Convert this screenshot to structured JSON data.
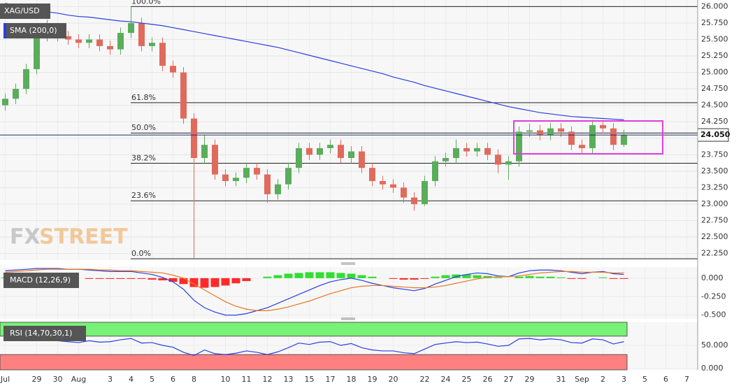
{
  "chart_data": [
    {
      "type": "candlestick",
      "title": "XAG/USD",
      "categories": [
        "Jul",
        null,
        null,
        "29",
        null,
        "30",
        null,
        "Aug",
        null,
        null,
        "3",
        null,
        "4",
        null,
        "5",
        null,
        "6",
        null,
        "8",
        null,
        null,
        "10",
        null,
        "11",
        null,
        "12",
        null,
        "13",
        null,
        "15",
        null,
        "17",
        null,
        "18",
        null,
        "19",
        null,
        "20",
        null,
        null,
        "22",
        null,
        "24",
        null,
        "25",
        null,
        "26",
        null,
        "27",
        null,
        "29",
        null,
        null,
        "31",
        null,
        "Sep",
        null,
        "2",
        null,
        "3",
        null,
        "5",
        null,
        "6",
        null,
        "7"
      ],
      "open": [
        24.5,
        24.6,
        24.75,
        25.05,
        25.55,
        25.65,
        25.55,
        25.5,
        25.45,
        25.5,
        25.4,
        25.35,
        25.6,
        25.75,
        25.4,
        25.45,
        25.1,
        25.0,
        24.3,
        23.7,
        23.9,
        23.45,
        23.35,
        23.4,
        23.55,
        23.45,
        23.15,
        23.3,
        23.55,
        23.85,
        23.75,
        23.85,
        23.9,
        23.7,
        23.8,
        23.55,
        23.35,
        23.3,
        23.25,
        23.1,
        23.0,
        23.35,
        23.65,
        23.7,
        23.85,
        23.8,
        23.85,
        23.75,
        23.6,
        23.65,
        24.1,
        24.12,
        24.05,
        24.15,
        24.1,
        23.9,
        23.85,
        24.2,
        24.15,
        23.9,
        null,
        null,
        null,
        null,
        null,
        null
      ],
      "high": [
        24.68,
        24.83,
        25.13,
        25.63,
        25.8,
        25.73,
        25.63,
        25.58,
        25.58,
        25.58,
        25.48,
        25.68,
        26.0,
        25.83,
        25.53,
        25.53,
        25.18,
        25.08,
        24.38,
        24.05,
        23.98,
        23.53,
        23.48,
        23.63,
        23.63,
        23.53,
        23.38,
        23.63,
        23.93,
        23.93,
        23.93,
        23.98,
        23.98,
        23.88,
        23.88,
        23.63,
        23.43,
        23.38,
        23.33,
        23.18,
        23.43,
        23.73,
        23.78,
        23.98,
        23.93,
        23.93,
        23.93,
        23.83,
        23.73,
        24.18,
        24.22,
        24.2,
        24.23,
        24.23,
        24.18,
        23.98,
        24.28,
        24.25,
        24.23,
        24.13,
        null,
        null,
        null,
        null,
        null,
        null
      ],
      "low": [
        24.42,
        24.52,
        24.67,
        24.97,
        25.47,
        25.47,
        25.42,
        25.37,
        25.37,
        25.32,
        25.27,
        25.27,
        25.52,
        25.32,
        25.32,
        25.02,
        24.92,
        24.22,
        22.17,
        23.62,
        23.37,
        23.27,
        23.27,
        23.32,
        23.37,
        23.02,
        23.07,
        23.22,
        23.47,
        23.67,
        23.67,
        23.77,
        23.62,
        23.62,
        23.47,
        23.27,
        23.22,
        23.17,
        23.02,
        22.9,
        22.97,
        23.27,
        23.57,
        23.62,
        23.72,
        23.72,
        23.67,
        23.47,
        23.37,
        23.57,
        24.02,
        23.97,
        23.97,
        24.02,
        23.82,
        23.77,
        23.77,
        24.07,
        23.82,
        23.87,
        null,
        null,
        null,
        null,
        null,
        null
      ],
      "close": [
        24.6,
        24.75,
        25.05,
        25.55,
        25.65,
        25.55,
        25.5,
        25.45,
        25.5,
        25.4,
        25.35,
        25.6,
        25.75,
        25.4,
        25.45,
        25.1,
        25.0,
        24.3,
        23.7,
        23.9,
        23.45,
        23.35,
        23.4,
        23.55,
        23.45,
        23.15,
        23.3,
        23.55,
        23.85,
        23.75,
        23.85,
        23.9,
        23.7,
        23.8,
        23.55,
        23.35,
        23.3,
        23.25,
        23.1,
        23.0,
        23.35,
        23.65,
        23.7,
        23.85,
        23.8,
        23.85,
        23.75,
        23.6,
        23.65,
        24.1,
        24.12,
        24.05,
        24.15,
        24.1,
        23.9,
        23.85,
        24.2,
        24.15,
        23.9,
        24.05,
        null,
        null,
        null,
        null,
        null,
        null
      ],
      "up_color": "#5aad5a",
      "down_color": "#e06a5c",
      "series": [
        {
          "name": "SMA (200,0)",
          "color": "#2a3fe0",
          "values": [
            26.05,
            26.02,
            25.98,
            25.95,
            25.92,
            25.9,
            25.87,
            25.85,
            25.84,
            25.82,
            25.8,
            25.78,
            25.77,
            25.75,
            25.73,
            25.71,
            25.68,
            25.65,
            25.62,
            25.59,
            25.56,
            25.53,
            25.5,
            25.47,
            25.44,
            25.41,
            25.38,
            25.34,
            25.3,
            25.26,
            25.22,
            25.18,
            25.14,
            25.1,
            25.06,
            25.02,
            24.98,
            24.93,
            24.89,
            24.85,
            24.8,
            24.76,
            24.72,
            24.68,
            24.64,
            24.6,
            24.56,
            24.52,
            24.48,
            24.45,
            24.42,
            24.39,
            24.37,
            24.35,
            24.33,
            24.32,
            24.31,
            24.3,
            24.29,
            24.28,
            null,
            null,
            null,
            null,
            null,
            null
          ]
        }
      ],
      "fibonacci": [
        {
          "label": "100.0%",
          "value": 26.0
        },
        {
          "label": "61.8%",
          "value": 24.54
        },
        {
          "label": "50.0%",
          "value": 24.08
        },
        {
          "label": "38.2%",
          "value": 23.62
        },
        {
          "label": "23.6%",
          "value": 23.05
        },
        {
          "label": "0.0%",
          "value": 22.17
        }
      ],
      "last_price": {
        "value": 24.05,
        "label": "24.050"
      },
      "logo": {
        "first": "FX",
        "second": "STREET"
      },
      "ylim": [
        22.15,
        26.1
      ],
      "yticks": [
        {
          "value": 22.25,
          "label": "22.250"
        },
        {
          "value": 22.5,
          "label": "22.500"
        },
        {
          "value": 22.75,
          "label": "22.750"
        },
        {
          "value": 23,
          "label": "23.000"
        },
        {
          "value": 23.25,
          "label": "23.250"
        },
        {
          "value": 23.5,
          "label": "23.500"
        },
        {
          "value": 23.75,
          "label": "23.750"
        },
        {
          "value": 24,
          "label": "24.000"
        },
        {
          "value": 24.25,
          "label": "24.250"
        },
        {
          "value": 24.5,
          "label": "24.500"
        },
        {
          "value": 24.75,
          "label": "24.750"
        },
        {
          "value": 25,
          "label": "25.000"
        },
        {
          "value": 25.25,
          "label": "25.250"
        },
        {
          "value": 25.5,
          "label": "25.500"
        },
        {
          "value": 25.75,
          "label": "25.750"
        },
        {
          "value": 26,
          "label": "26.000"
        }
      ],
      "grid": true
    },
    {
      "type": "macd",
      "title": "MACD (12,26,9)",
      "series": [
        {
          "color": "#2a3fe0",
          "values": [
            0.1,
            0.11,
            0.12,
            0.13,
            0.13,
            0.13,
            0.12,
            0.12,
            0.11,
            0.1,
            0.09,
            0.09,
            0.09,
            0.07,
            0.05,
            0.01,
            -0.05,
            -0.15,
            -0.3,
            -0.4,
            -0.46,
            -0.5,
            -0.5,
            -0.48,
            -0.44,
            -0.4,
            -0.34,
            -0.28,
            -0.22,
            -0.16,
            -0.1,
            -0.05,
            -0.02,
            0.0,
            -0.03,
            -0.07,
            -0.1,
            -0.13,
            -0.15,
            -0.17,
            -0.14,
            -0.08,
            -0.03,
            0.02,
            0.05,
            0.07,
            0.06,
            0.03,
            0.02,
            0.07,
            0.1,
            0.11,
            0.11,
            0.1,
            0.08,
            0.06,
            0.08,
            0.09,
            0.06,
            0.05,
            null,
            null,
            null,
            null,
            null,
            null
          ]
        },
        {
          "color": "#e8781e",
          "values": [
            0.08,
            0.09,
            0.1,
            0.11,
            0.12,
            0.12,
            0.12,
            0.12,
            0.12,
            0.11,
            0.11,
            0.1,
            0.1,
            0.09,
            0.08,
            0.07,
            0.04,
            0.0,
            -0.08,
            -0.16,
            -0.24,
            -0.32,
            -0.38,
            -0.42,
            -0.44,
            -0.44,
            -0.42,
            -0.39,
            -0.35,
            -0.31,
            -0.26,
            -0.21,
            -0.17,
            -0.13,
            -0.11,
            -0.1,
            -0.1,
            -0.11,
            -0.12,
            -0.13,
            -0.13,
            -0.12,
            -0.1,
            -0.07,
            -0.04,
            -0.01,
            0.01,
            0.02,
            0.02,
            0.03,
            0.05,
            0.07,
            0.08,
            0.09,
            0.09,
            0.08,
            0.08,
            0.08,
            0.07,
            0.07,
            null,
            null,
            null,
            null,
            null,
            null
          ]
        }
      ],
      "histogram": [
        0.01,
        0.01,
        0.01,
        0.01,
        0.01,
        0.01,
        0.0,
        0.0,
        -0.01,
        -0.01,
        -0.01,
        -0.01,
        -0.01,
        -0.01,
        -0.02,
        -0.03,
        -0.05,
        -0.08,
        -0.12,
        -0.13,
        -0.12,
        -0.1,
        -0.07,
        -0.04,
        0.0,
        0.02,
        0.04,
        0.06,
        0.07,
        0.08,
        0.08,
        0.08,
        0.07,
        0.06,
        0.04,
        0.02,
        0.0,
        -0.01,
        -0.02,
        -0.02,
        -0.01,
        0.02,
        0.04,
        0.05,
        0.05,
        0.04,
        0.03,
        0.01,
        0.0,
        0.02,
        0.03,
        0.02,
        0.02,
        0.01,
        -0.01,
        -0.01,
        0.0,
        0.01,
        -0.01,
        -0.01,
        null,
        null,
        null,
        null,
        null,
        null
      ],
      "up_color": "#33dd33",
      "down_color": "#ff2a2a",
      "ylim": [
        -0.55,
        0.15
      ],
      "yticks": [
        {
          "value": 0,
          "label": "0.000"
        },
        {
          "value": -0.25,
          "label": "-0.250"
        },
        {
          "value": -0.5,
          "label": "-0.500"
        }
      ]
    },
    {
      "type": "line",
      "title": "RSI (14,70,30,1)",
      "series": [
        {
          "color": "#2a3fe0",
          "values": [
            60,
            62,
            65,
            68,
            62,
            60,
            58,
            56,
            60,
            57,
            58,
            62,
            65,
            55,
            56,
            50,
            46,
            35,
            28,
            40,
            32,
            30,
            33,
            38,
            35,
            30,
            36,
            45,
            55,
            52,
            57,
            58,
            50,
            54,
            45,
            40,
            38,
            38,
            34,
            32,
            42,
            52,
            55,
            58,
            56,
            57,
            53,
            48,
            50,
            64,
            65,
            62,
            64,
            62,
            56,
            55,
            64,
            62,
            53,
            58,
            null,
            null,
            null,
            null,
            null,
            null
          ]
        }
      ],
      "upper_band": 70,
      "lower_band": 30,
      "upper_color": "#77f277",
      "lower_color": "#ff8080",
      "ylim": [
        -3,
        100
      ],
      "yticks": [
        {
          "value": 50,
          "label": "50.000"
        },
        {
          "value": 0,
          "label": "0.000"
        }
      ]
    }
  ]
}
